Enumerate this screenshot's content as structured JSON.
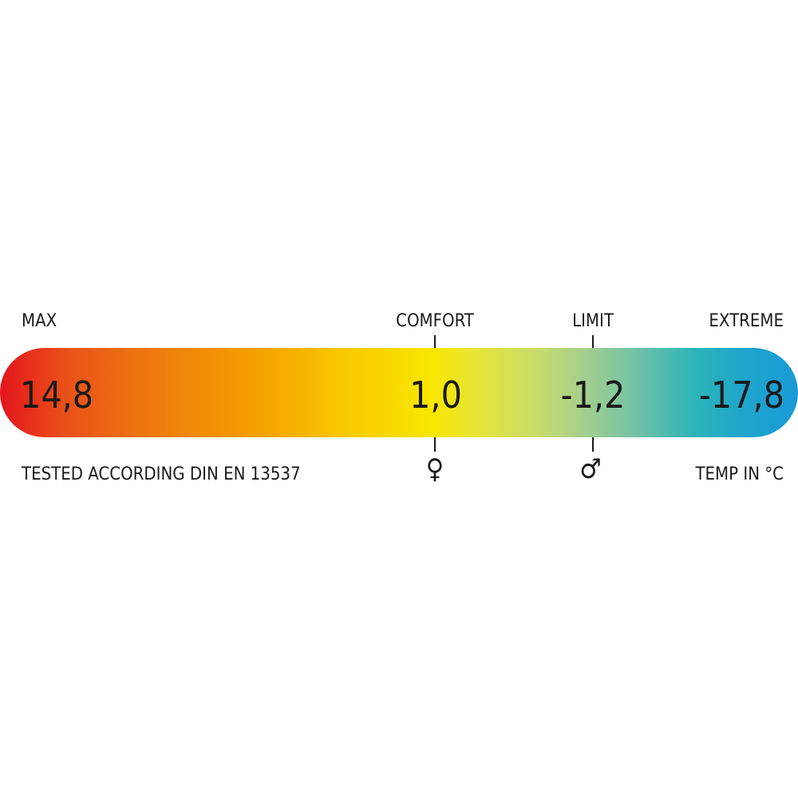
{
  "labels": {
    "max": "MAX",
    "comfort": "COMFORT",
    "limit": "LIMIT",
    "extreme": "EXTREME"
  },
  "values": {
    "max": "14,8",
    "comfort": "1,0",
    "limit": "-1,2",
    "extreme": "-17,8"
  },
  "footer": {
    "standard": "TESTED ACCORDING DIN EN 13537",
    "unit": "TEMP IN °C"
  },
  "symbols": {
    "comfort": "♀",
    "limit": "♂"
  },
  "icons": {
    "comfort": "female-symbol-icon",
    "limit": "male-symbol-icon"
  },
  "gradient_colors": [
    "#e3141c",
    "#ee7d0d",
    "#f9e600",
    "#c9dc6a",
    "#2db4b8",
    "#1a9ad6"
  ]
}
